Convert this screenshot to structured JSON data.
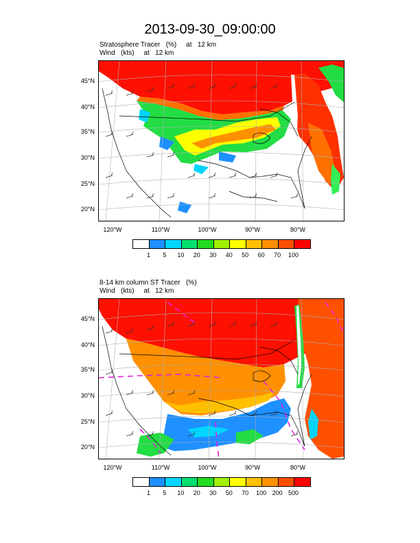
{
  "title": "2013-09-30_09:00:00",
  "panels": [
    {
      "title_line1": "Stratosphere Tracer   (%)     at   12 km",
      "title_line2": "Wind   (kts)     at   12 km",
      "lat_labels": [
        "45°N",
        "40°N",
        "35°N",
        "30°N",
        "25°N",
        "20°N"
      ],
      "lon_labels": [
        "120°W",
        "110°W",
        "100°W",
        "90°W",
        "80°W"
      ],
      "colorbar_labels": [
        "1",
        "5",
        "10",
        "20",
        "30",
        "40",
        "50",
        "60",
        "70",
        "100"
      ]
    },
    {
      "title_line1": "8-14 km column ST Tracer   (%)",
      "title_line2": "Wind   (kts)     at   12 km",
      "lat_labels": [
        "45°N",
        "40°N",
        "35°N",
        "30°N",
        "25°N",
        "20°N"
      ],
      "lon_labels": [
        "120°W",
        "110°W",
        "100°W",
        "90°W",
        "80°W"
      ],
      "colorbar_labels": [
        "1",
        "5",
        "10",
        "20",
        "30",
        "50",
        "70",
        "100",
        "200",
        "500"
      ]
    }
  ],
  "colorbar_colors": [
    "#ffffff",
    "#1e90ff",
    "#00d5ff",
    "#00e070",
    "#22dd22",
    "#a0f000",
    "#ffff00",
    "#ffc000",
    "#ff9000",
    "#ff5000",
    "#ff0000"
  ],
  "overlay_colors": {
    "contour": "#e020e0",
    "coast": "#000000",
    "grid": "#b0b0b0"
  }
}
